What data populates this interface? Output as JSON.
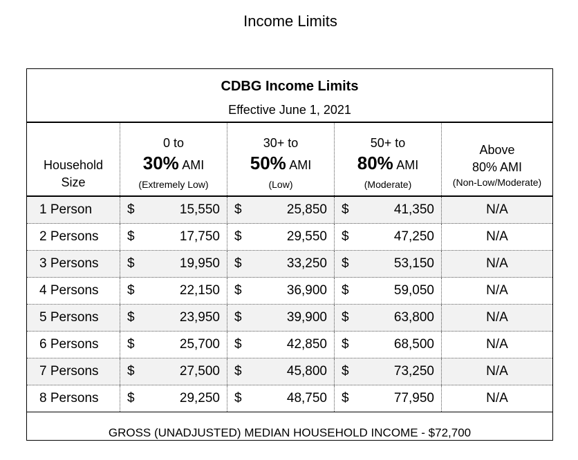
{
  "page_title": "Income Limits",
  "table": {
    "title": "CDBG Income Limits",
    "effective": "Effective June 1, 2021",
    "household_header": [
      "Household",
      "Size"
    ],
    "columns": [
      {
        "range": "0 to",
        "pct": "30%",
        "ami": "AMI",
        "note": "(Extremely Low)"
      },
      {
        "range": "30+ to",
        "pct": "50%",
        "ami": "AMI",
        "note": "(Low)"
      },
      {
        "range": "50+ to",
        "pct": "80%",
        "ami": "AMI",
        "note": "(Moderate)"
      },
      {
        "range": "Above",
        "pct": "80% AMI",
        "note": "(Non-Low/Moderate)"
      }
    ],
    "currency_symbol": "$",
    "rows": [
      {
        "size": "1 Person",
        "v30": "15,550",
        "v50": "25,850",
        "v80": "41,350",
        "above": "N/A"
      },
      {
        "size": "2 Persons",
        "v30": "17,750",
        "v50": "29,550",
        "v80": "47,250",
        "above": "N/A"
      },
      {
        "size": "3 Persons",
        "v30": "19,950",
        "v50": "33,250",
        "v80": "53,150",
        "above": "N/A"
      },
      {
        "size": "4 Persons",
        "v30": "22,150",
        "v50": "36,900",
        "v80": "59,050",
        "above": "N/A"
      },
      {
        "size": "5 Persons",
        "v30": "23,950",
        "v50": "39,900",
        "v80": "63,800",
        "above": "N/A"
      },
      {
        "size": "6 Persons",
        "v30": "25,700",
        "v50": "42,850",
        "v80": "68,500",
        "above": "N/A"
      },
      {
        "size": "7 Persons",
        "v30": "27,500",
        "v50": "45,800",
        "v80": "73,250",
        "above": "N/A"
      },
      {
        "size": "8 Persons",
        "v30": "29,250",
        "v50": "48,750",
        "v80": "77,950",
        "above": "N/A"
      }
    ],
    "footer": "GROSS (UNADJUSTED) MEDIAN HOUSEHOLD INCOME - $72,700",
    "colors": {
      "row_shade": "#f2f2f2",
      "border": "#000000"
    }
  }
}
